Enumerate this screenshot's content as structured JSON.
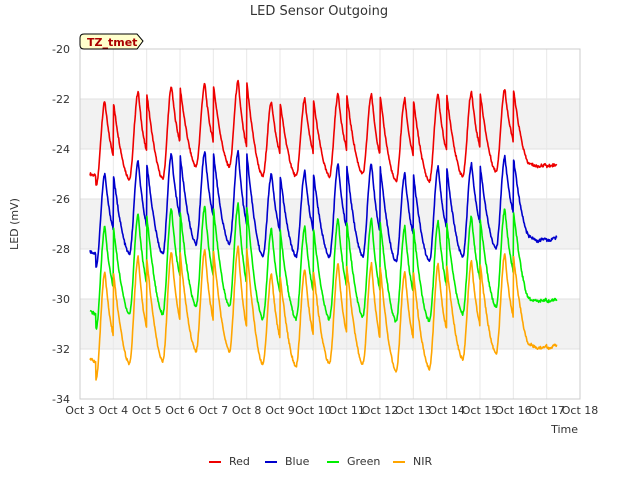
{
  "chart_data": {
    "type": "line",
    "title": "LED Sensor Outgoing",
    "xlabel": "Time",
    "ylabel": "LED (mV)",
    "ylim": [
      -34,
      -20
    ],
    "xlim": [
      3,
      18
    ],
    "yticks": [
      -34,
      -32,
      -30,
      -28,
      -26,
      -24,
      -22,
      -20
    ],
    "xticks": [
      {
        "v": 3,
        "label": "Oct 3"
      },
      {
        "v": 4,
        "label": "Oct 4"
      },
      {
        "v": 5,
        "label": "Oct 5"
      },
      {
        "v": 6,
        "label": "Oct 6"
      },
      {
        "v": 7,
        "label": "Oct 7"
      },
      {
        "v": 8,
        "label": "Oct 8"
      },
      {
        "v": 9,
        "label": "Oct 9"
      },
      {
        "v": 10,
        "label": "Oct 10"
      },
      {
        "v": 11,
        "label": "Oct 11"
      },
      {
        "v": 12,
        "label": "Oct 12"
      },
      {
        "v": 13,
        "label": "Oct 13"
      },
      {
        "v": 14,
        "label": "Oct 14"
      },
      {
        "v": 15,
        "label": "Oct 15"
      },
      {
        "v": 16,
        "label": "Oct 16"
      },
      {
        "v": 17,
        "label": "Oct 17"
      },
      {
        "v": 18,
        "label": "Oct 18"
      }
    ],
    "badge": "TZ_tmet",
    "x_start": 3.3,
    "x_end": 17.3,
    "day_cycle": {
      "min_phase": 0.48,
      "peak_phase": 0.75
    },
    "series": [
      {
        "name": "Red",
        "color": "#ee0000",
        "start": -25.0,
        "mins": [
          -25.5,
          -25.2,
          -25.2,
          -24.7,
          -24.7,
          -25.1,
          -25.1,
          -25.1,
          -25.0,
          -25.3,
          -25.3,
          -25.1,
          -24.9,
          -24.6
        ],
        "peaks": [
          -22.1,
          -21.7,
          -21.5,
          -21.4,
          -21.3,
          -22.1,
          -22.0,
          -21.8,
          -21.8,
          -22.0,
          -21.8,
          -21.7,
          -21.6,
          -24.7
        ]
      },
      {
        "name": "Blue",
        "color": "#0000cc",
        "start": -28.1,
        "mins": [
          -28.7,
          -28.2,
          -28.2,
          -27.8,
          -27.8,
          -28.3,
          -28.3,
          -28.3,
          -28.3,
          -28.5,
          -28.5,
          -28.3,
          -28.0,
          -27.5
        ],
        "peaks": [
          -25.0,
          -24.5,
          -24.2,
          -24.1,
          -24.1,
          -25.0,
          -24.9,
          -24.6,
          -24.6,
          -25.0,
          -24.7,
          -24.6,
          -24.3,
          -27.7
        ]
      },
      {
        "name": "Green",
        "color": "#00ee00",
        "start": -30.5,
        "mins": [
          -31.2,
          -30.6,
          -30.6,
          -30.3,
          -30.3,
          -30.8,
          -30.8,
          -30.8,
          -30.7,
          -30.9,
          -30.9,
          -30.6,
          -30.3,
          -30.0
        ],
        "peaks": [
          -27.1,
          -26.6,
          -26.4,
          -26.3,
          -26.2,
          -27.2,
          -27.1,
          -26.8,
          -26.8,
          -27.1,
          -26.9,
          -26.7,
          -26.4,
          -30.1
        ]
      },
      {
        "name": "NIR",
        "color": "#ffa500",
        "start": -32.4,
        "mins": [
          -33.2,
          -32.6,
          -32.5,
          -32.1,
          -32.1,
          -32.6,
          -32.7,
          -32.6,
          -32.6,
          -32.9,
          -32.8,
          -32.4,
          -32.2,
          -31.8
        ],
        "peaks": [
          -28.9,
          -28.3,
          -28.1,
          -28.0,
          -27.9,
          -29.0,
          -28.8,
          -28.6,
          -28.6,
          -28.9,
          -28.6,
          -28.5,
          -28.2,
          -32.0
        ]
      }
    ]
  }
}
